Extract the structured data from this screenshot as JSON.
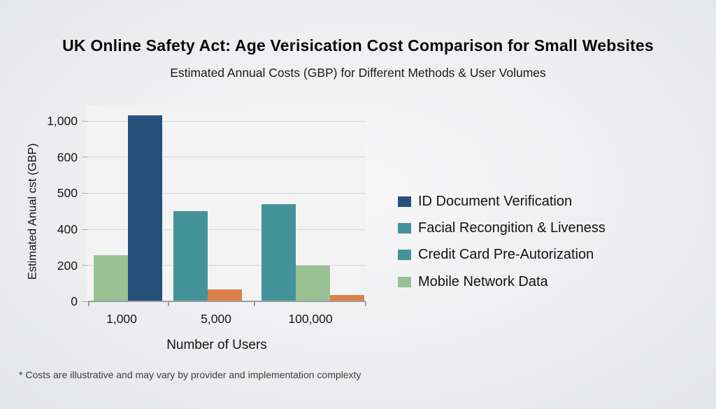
{
  "page": {
    "title": "UK Online Safety Act: Age Verisication Cost Comparison for Small Websites",
    "subtitle": "Estimated Annual Costs (GBP) for Different Methods & User Volumes",
    "footnote": "* Costs are illustrative and may vary by provider and implementation complexty"
  },
  "colors": {
    "navy": "#25507b",
    "teal": "#44939a",
    "green": "#99c194",
    "orange": "#dd8049",
    "grid": "#d8d9da",
    "axis": "#9b9ea0"
  },
  "legend": {
    "position": "right",
    "items": [
      {
        "label": "ID Document Verification",
        "color": "navy"
      },
      {
        "label": "Facial Recongition & Liveness",
        "color": "teal"
      },
      {
        "label": "Credit Card Pre-Autorization",
        "color": "teal"
      },
      {
        "label": "Mobile Network Data",
        "color": "green"
      }
    ]
  },
  "chart_data": {
    "type": "bar",
    "title": "UK Online Safety Act: Age Verisication Cost Comparison for Small Websites",
    "subtitle": "Estimated Annual Costs (GBP) for Different Methods & User Volumes",
    "xlabel": "Number of Users",
    "ylabel": "Estimated Anual cst (GBP)",
    "categories": [
      "1,000",
      "5,000",
      "100,000"
    ],
    "y_tick_labels": [
      "0",
      "200",
      "400",
      "500",
      "600",
      "1,000"
    ],
    "y_tick_values": [
      0,
      200,
      400,
      500,
      600,
      1000
    ],
    "axis_note": "y ticks are evenly spaced on screen despite non-linear values",
    "grid": true,
    "legend_position": "right",
    "groups": [
      {
        "category": "1,000",
        "bars": [
          {
            "series": "Mobile Network Data",
            "color": "green",
            "value": 255
          },
          {
            "series": "ID Document Verification",
            "color": "navy",
            "value": 1060
          }
        ]
      },
      {
        "category": "5,000",
        "bars": [
          {
            "series": "Facial Recongition & Liveness",
            "color": "teal",
            "value": 450
          },
          {
            "series": "unlabeled",
            "color": "orange",
            "value": 65
          }
        ]
      },
      {
        "category": "100,000",
        "bars": [
          {
            "series": "Credit Card Pre-Autorization",
            "color": "teal",
            "value": 470
          },
          {
            "series": "Mobile Network Data",
            "color": "green",
            "value": 200
          },
          {
            "series": "unlabeled",
            "color": "orange",
            "value": 35
          }
        ]
      }
    ]
  }
}
